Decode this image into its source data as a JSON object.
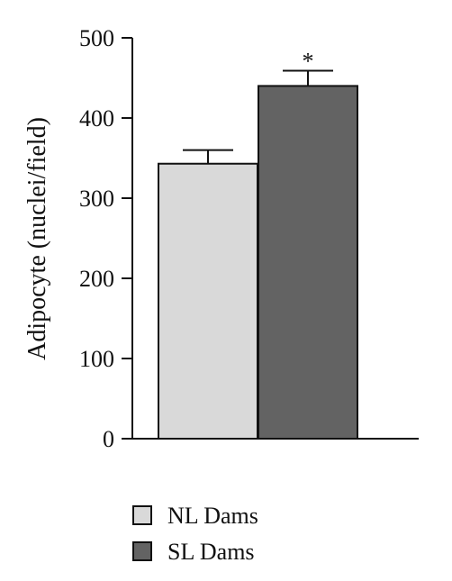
{
  "chart_data": {
    "type": "bar",
    "title": "",
    "xlabel": "",
    "ylabel": "Adipocyte (nuclei/field)",
    "ylim": [
      0,
      500
    ],
    "yticks": [
      0,
      100,
      200,
      300,
      400,
      500
    ],
    "categories": [
      "NL Dams",
      "SL Dams"
    ],
    "values": [
      343,
      440
    ],
    "errors": [
      17,
      19
    ],
    "colors": [
      "#d9d9d9",
      "#636363"
    ],
    "annotations": [
      {
        "category": "SL Dams",
        "text": "*"
      }
    ],
    "legend": {
      "placement": "bottom",
      "entries": [
        {
          "label": "NL Dams",
          "color": "#d9d9d9"
        },
        {
          "label": "SL Dams",
          "color": "#636363"
        }
      ]
    },
    "grid": false
  }
}
